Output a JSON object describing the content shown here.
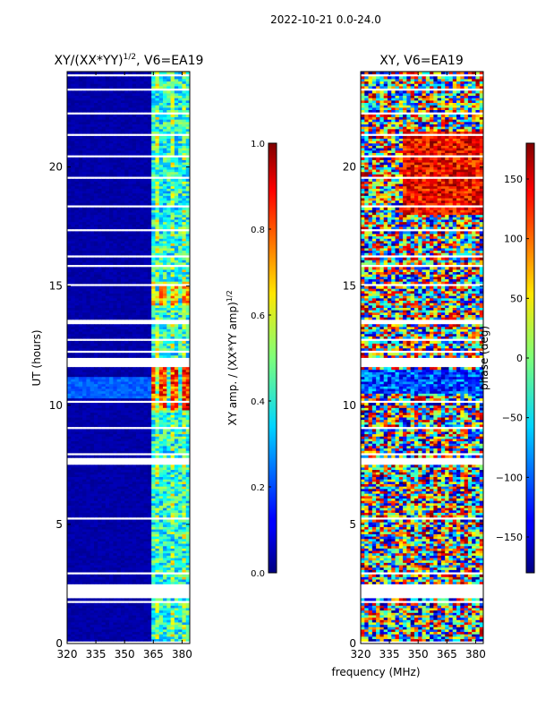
{
  "figure": {
    "suptitle": "2022-10-21 0.0-24.0",
    "xlabel_shared": "frequency (MHz)"
  },
  "chart_data": [
    {
      "type": "heatmap",
      "title": "XY/(XX*YY)",
      "title_superscript": "1/2",
      "title_suffix": ", V6=EA19",
      "xlabel": "",
      "ylabel": "UT (hours)",
      "x_ticks": [
        "320",
        "335",
        "350",
        "365",
        "380"
      ],
      "y_ticks": [
        "0",
        "5",
        "10",
        "15",
        "20"
      ],
      "xlim": [
        320,
        384
      ],
      "ylim": [
        0,
        24
      ],
      "colorbar": {
        "label": "XY amp. / (XX*YY amp)",
        "label_superscript": "1/2",
        "range": [
          0.0,
          1.0
        ],
        "ticks": [
          "0.0",
          "0.2",
          "0.4",
          "0.6",
          "0.8",
          "1.0"
        ]
      }
    },
    {
      "type": "heatmap",
      "title": "XY, V6=EA19",
      "xlabel": "frequency (MHz)",
      "ylabel": "",
      "x_ticks": [
        "320",
        "335",
        "350",
        "365",
        "380"
      ],
      "y_ticks": [
        "0",
        "5",
        "10",
        "15",
        "20"
      ],
      "xlim": [
        320,
        384
      ],
      "ylim": [
        0,
        24
      ],
      "colorbar": {
        "label": "phase (deg)",
        "range": [
          -180,
          180
        ],
        "ticks": [
          "−150",
          "−100",
          "−50",
          "0",
          "50",
          "100",
          "150"
        ]
      }
    }
  ]
}
